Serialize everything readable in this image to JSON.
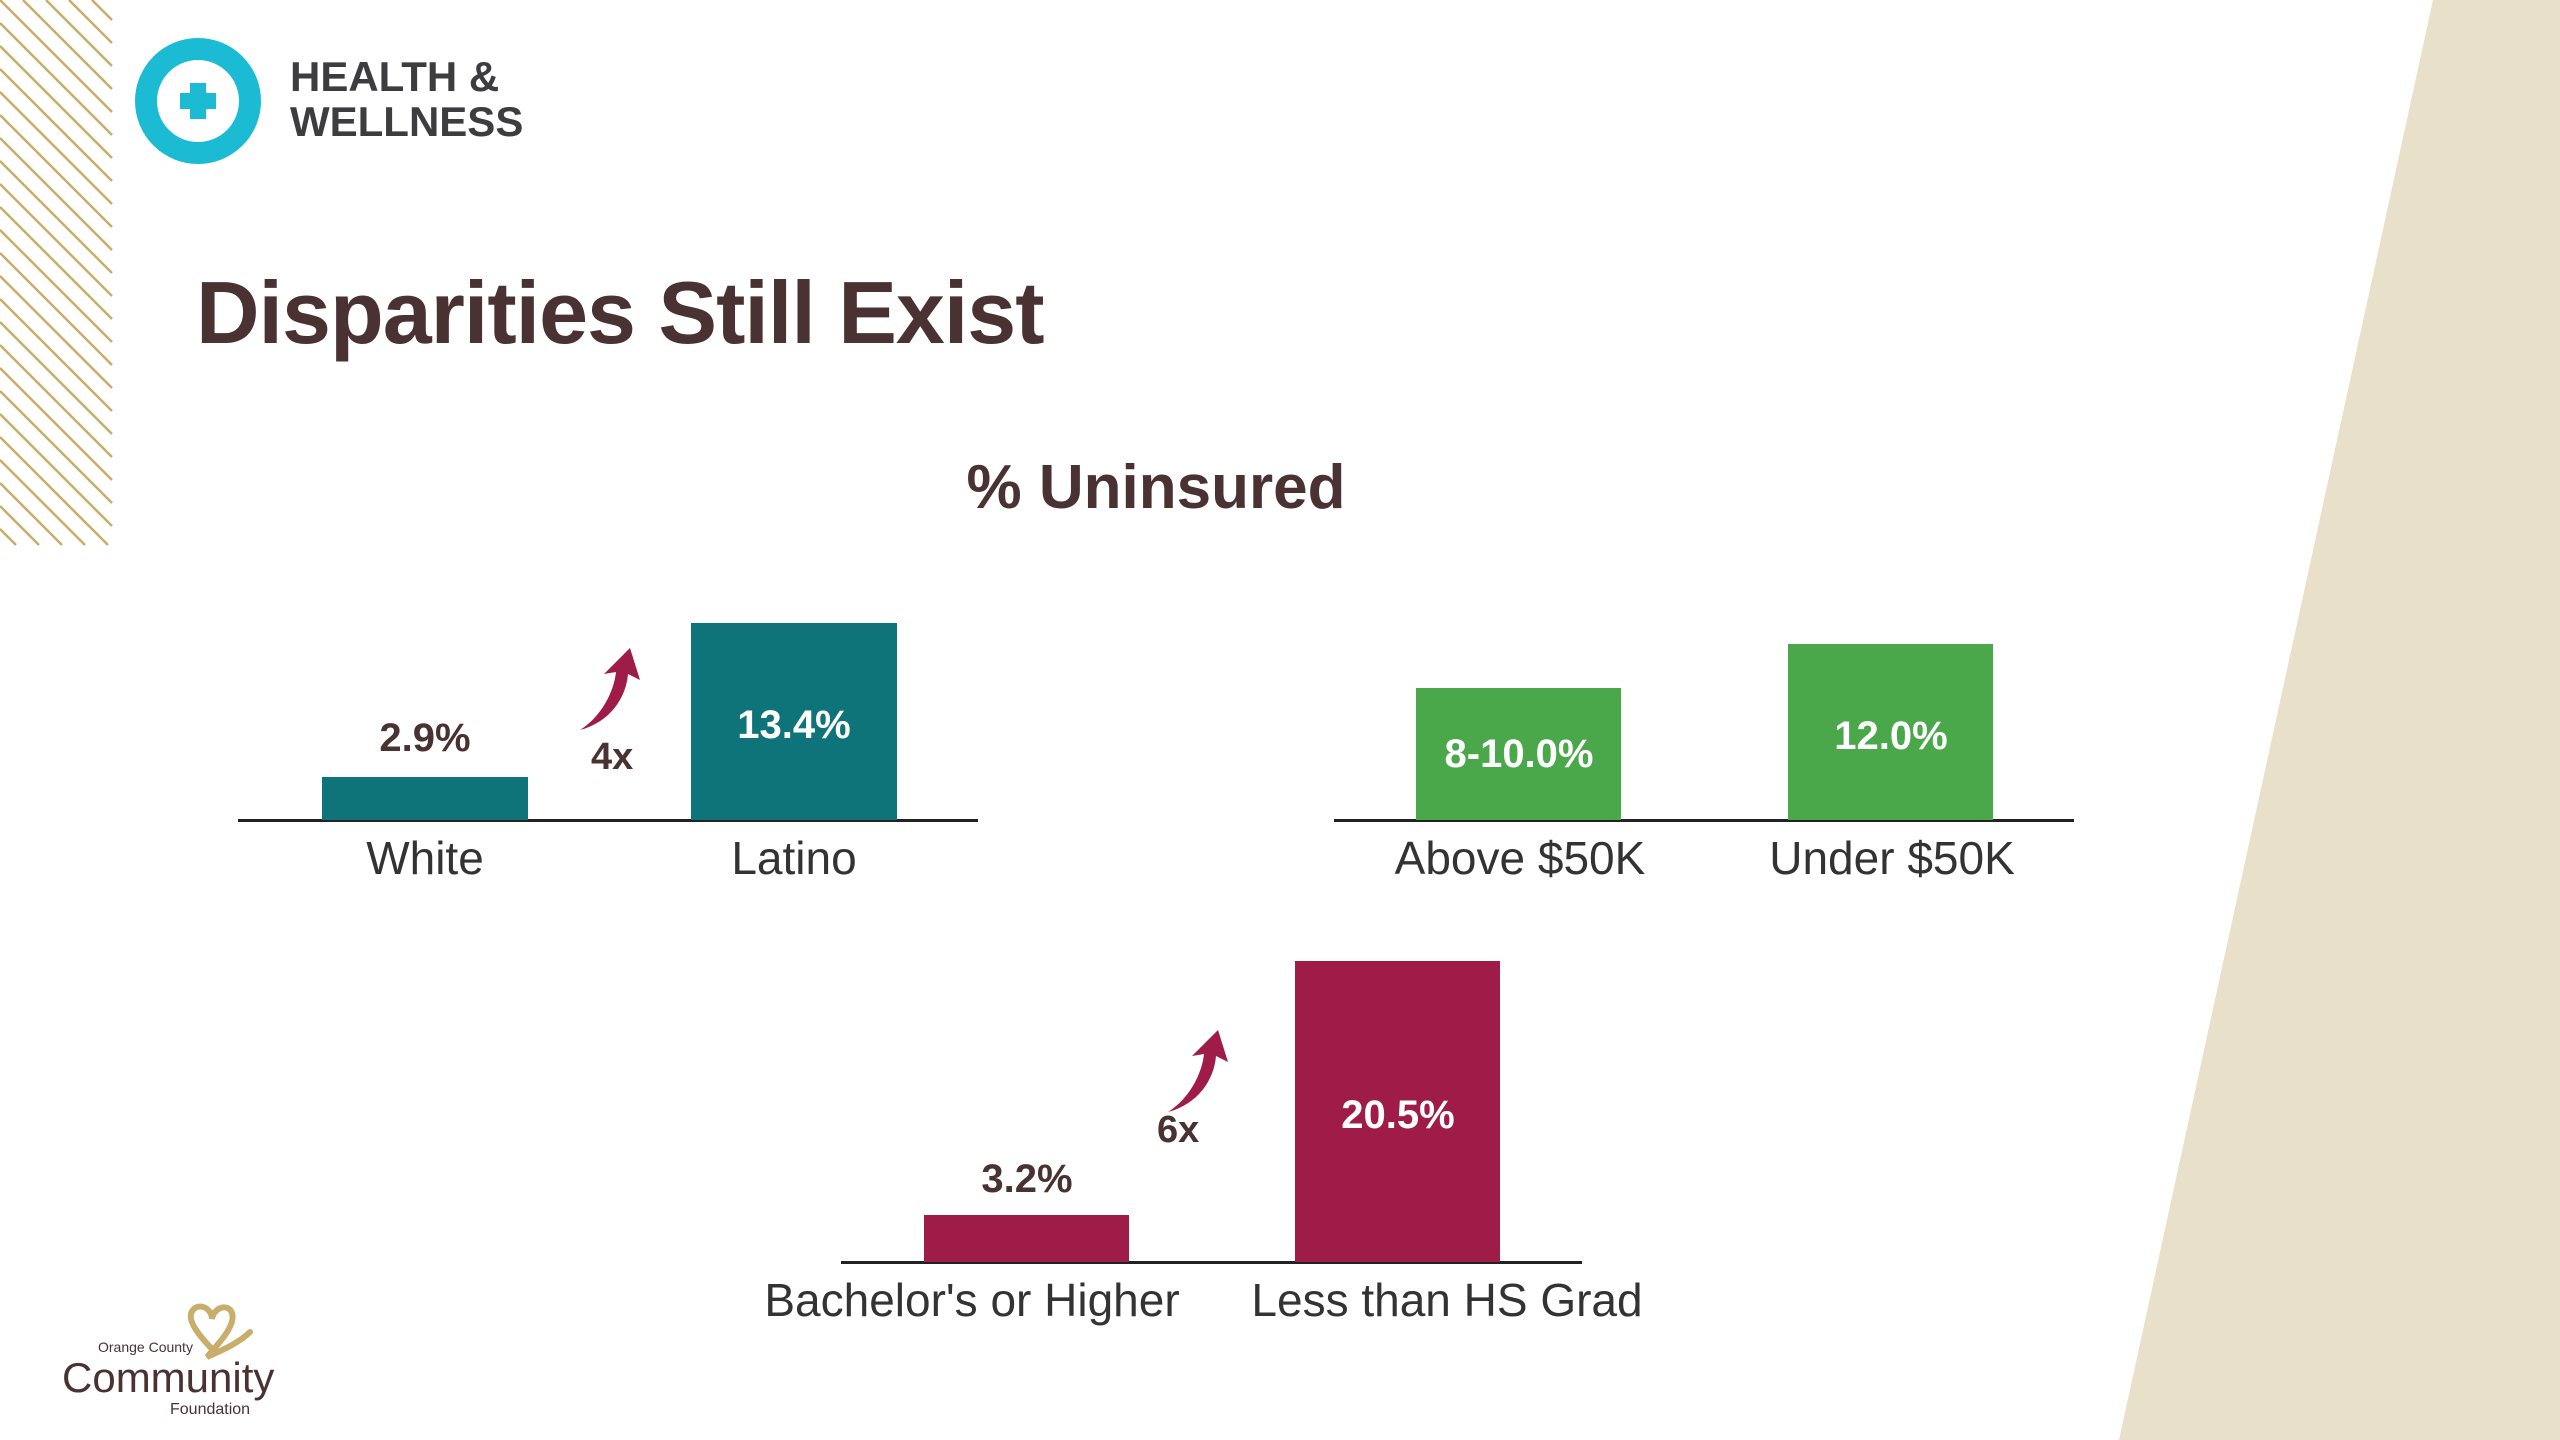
{
  "header": {
    "brand_line1": "HEALTH &",
    "brand_line2": "WELLNESS",
    "brand_icon": "medical-cross-icon"
  },
  "title": "Disparities Still Exist",
  "subtitle": "% Uninsured",
  "colors": {
    "teal": "#0e7479",
    "green": "#4aa84a",
    "maroon": "#a01c48",
    "text": "#4a3232",
    "accent_cyan": "#1bbcd3",
    "beige": "#e8e0c8",
    "stripes": "#c9ad6a"
  },
  "footer_logo": {
    "line1": "Orange County",
    "line2": "Community",
    "line3": "Foundation"
  },
  "chart_data": [
    {
      "type": "bar",
      "title": "% Uninsured",
      "categories": [
        "White",
        "Latino"
      ],
      "values": [
        2.9,
        13.4
      ],
      "labels": [
        "2.9%",
        "13.4%"
      ],
      "color": "#0e7479",
      "annotation": "4x",
      "grid": false
    },
    {
      "type": "bar",
      "categories": [
        "Above $50K",
        "Under $50K"
      ],
      "values": [
        9.0,
        12.0
      ],
      "labels": [
        "8-10.0%",
        "12.0%"
      ],
      "color": "#4aa84a",
      "grid": false
    },
    {
      "type": "bar",
      "categories": [
        "Bachelor's or Higher",
        "Less than HS Grad"
      ],
      "values": [
        3.2,
        20.5
      ],
      "labels": [
        "3.2%",
        "20.5%"
      ],
      "color": "#a01c48",
      "annotation": "6x",
      "grid": false
    }
  ]
}
